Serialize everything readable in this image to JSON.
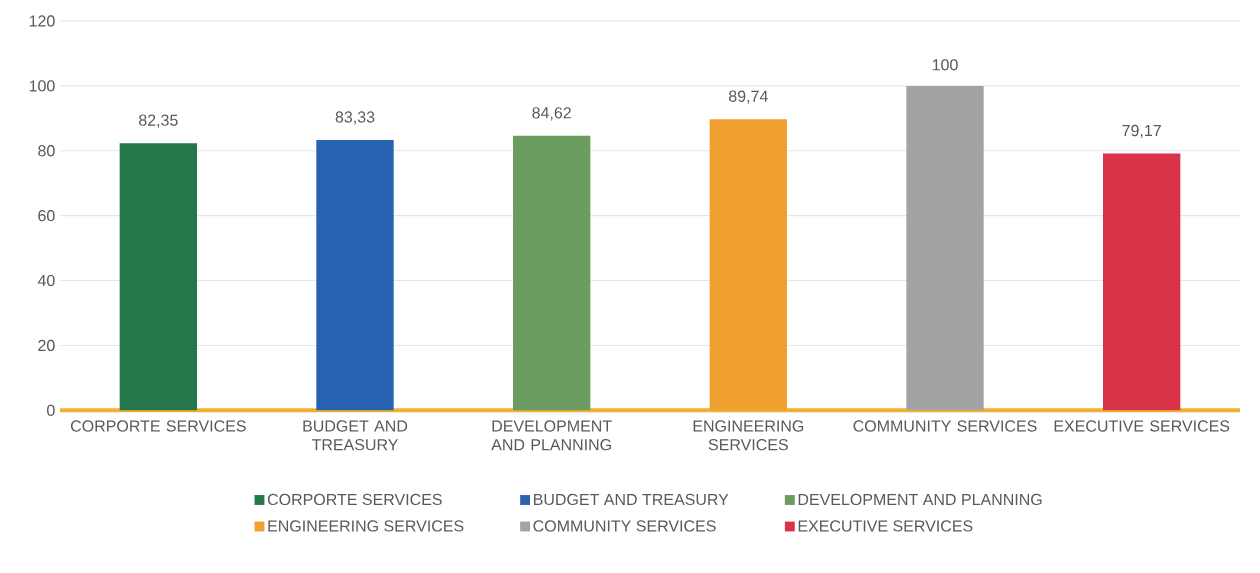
{
  "chart_data": {
    "type": "bar",
    "categories": [
      "CORPORTE SERVICES",
      "BUDGET AND TREASURY",
      "DEVELOPMENT AND PLANNING",
      "ENGINEERING SERVICES",
      "COMMUNITY SERVICES",
      "EXECUTIVE SERVICES"
    ],
    "series": [
      {
        "name": "CORPORTE SERVICES",
        "color": "#23774a",
        "values": [
          82.35,
          null,
          null,
          null,
          null,
          null
        ],
        "value_labels": [
          "82,35",
          null,
          null,
          null,
          null,
          null
        ]
      },
      {
        "name": "BUDGET AND TREASURY",
        "color": "#2763b0",
        "values": [
          null,
          83.33,
          null,
          null,
          null,
          null
        ],
        "value_labels": [
          null,
          "83,33",
          null,
          null,
          null,
          null
        ]
      },
      {
        "name": "DEVELOPMENT AND PLANNING",
        "color": "#6a9d5f",
        "values": [
          null,
          null,
          84.62,
          null,
          null,
          null
        ],
        "value_labels": [
          null,
          null,
          "84,62",
          null,
          null,
          null
        ]
      },
      {
        "name": "ENGINEERING SERVICES",
        "color": "#f0a030",
        "values": [
          null,
          null,
          null,
          89.74,
          null,
          null
        ],
        "value_labels": [
          null,
          null,
          null,
          "89,74",
          null,
          null
        ]
      },
      {
        "name": "COMMUNITY SERVICES",
        "color": "#a3a3a3",
        "values": [
          null,
          null,
          null,
          null,
          100,
          null
        ],
        "value_labels": [
          null,
          null,
          null,
          null,
          "100",
          null
        ]
      },
      {
        "name": "EXECUTIVE SERVICES",
        "color": "#d9334a",
        "values": [
          null,
          null,
          null,
          null,
          null,
          79.17
        ],
        "value_labels": [
          null,
          null,
          null,
          null,
          null,
          "79,17"
        ]
      }
    ],
    "ylim": [
      0,
      120
    ],
    "yticks": [
      0,
      20,
      40,
      60,
      80,
      100,
      120
    ],
    "grid": "y",
    "legend": "bottom"
  }
}
